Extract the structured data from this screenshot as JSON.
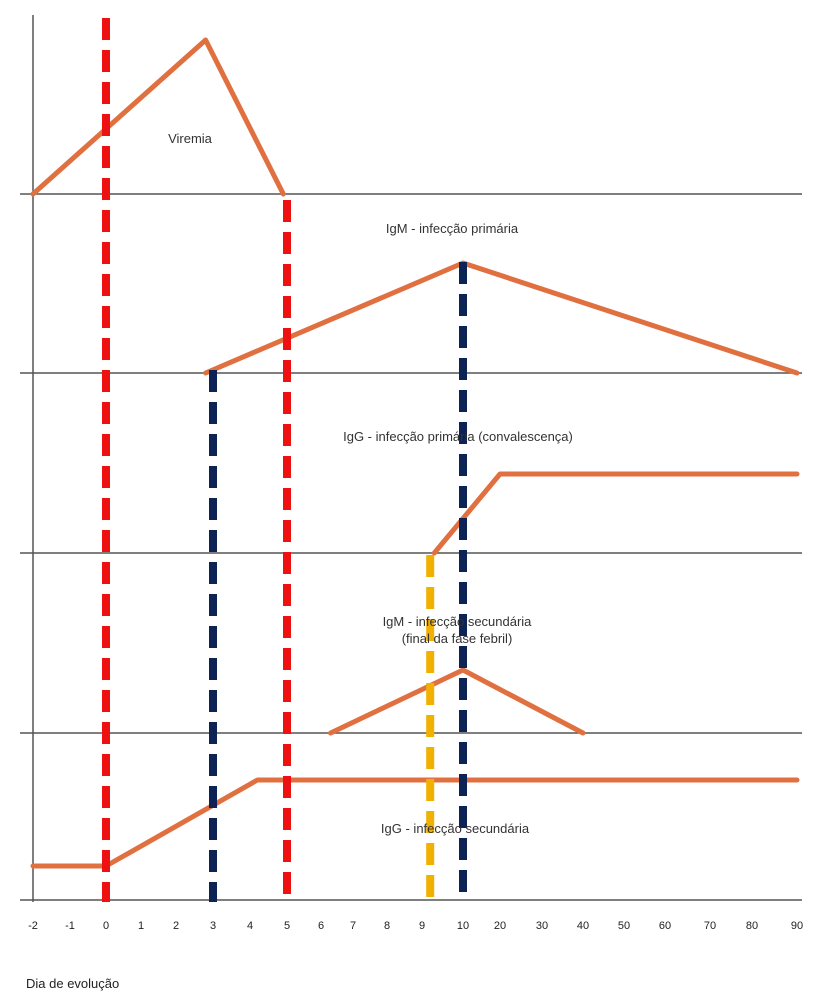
{
  "chart_data": {
    "type": "line",
    "title": "",
    "xlabel": "Dia de evolução",
    "ylabel": "",
    "x_ticks": [
      "-2",
      "-1",
      "0",
      "1",
      "2",
      "3",
      "4",
      "5",
      "6",
      "7",
      "8",
      "9",
      "10",
      "20",
      "30",
      "40",
      "50",
      "60",
      "70",
      "80",
      "90"
    ],
    "grid": false,
    "colors": {
      "curve": "#e07040",
      "baseline": "#555555",
      "red_marker": "#ee1111",
      "navy_marker": "#0d2255",
      "yellow_marker": "#f2b000"
    },
    "panels": [
      {
        "label": "Viremia",
        "points": [
          [
            -2,
            0
          ],
          [
            2.8,
            1
          ],
          [
            4.9,
            0
          ]
        ]
      },
      {
        "label": "IgM - infecção primária",
        "points": [
          [
            2.8,
            0
          ],
          [
            10,
            1
          ],
          [
            90,
            0
          ]
        ]
      },
      {
        "label": "IgG - infecção primária (convalescença)",
        "points": [
          [
            9.3,
            0
          ],
          [
            20,
            1
          ],
          [
            90,
            1
          ]
        ]
      },
      {
        "label": "IgM - infecção secundária",
        "label_line2": "(final da fase febril)",
        "points": [
          [
            6.3,
            0
          ],
          [
            10,
            1
          ],
          [
            40,
            0
          ]
        ]
      },
      {
        "label": "IgG - infecção secundária",
        "points": [
          [
            -2,
            0
          ],
          [
            0,
            0
          ],
          [
            4.2,
            1
          ],
          [
            90,
            1
          ]
        ]
      }
    ],
    "markers": [
      {
        "x": 0,
        "color": "red"
      },
      {
        "x": 5,
        "color": "red"
      },
      {
        "x": 3,
        "color": "navy"
      },
      {
        "x": 10,
        "color": "navy"
      },
      {
        "x": 9.2,
        "color": "yellow"
      }
    ]
  }
}
